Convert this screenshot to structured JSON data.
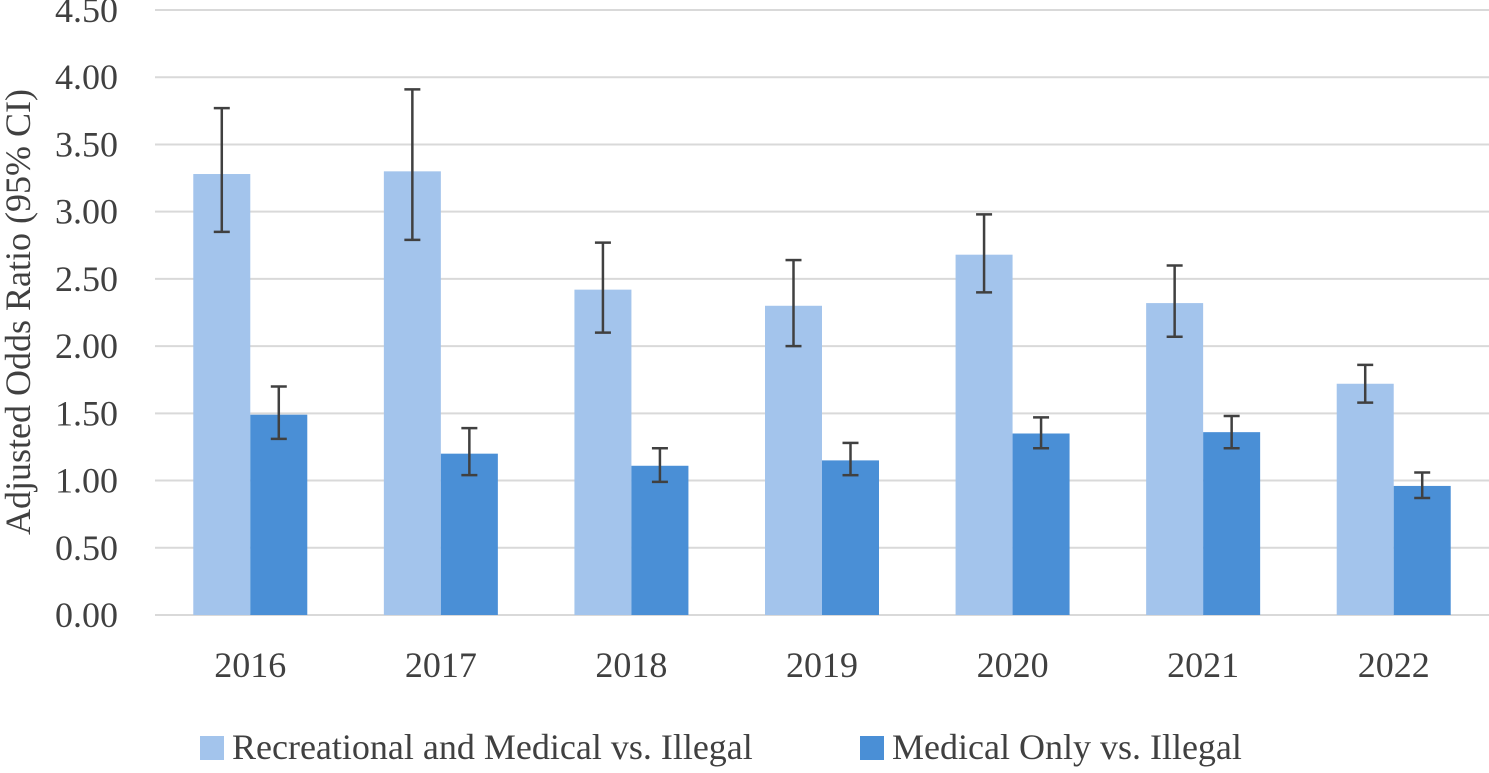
{
  "chart_data": {
    "type": "bar",
    "title": "",
    "xlabel": "",
    "ylabel": "Adjusted Odds Ratio (95% CI)",
    "ylim": [
      0,
      4.5
    ],
    "ytick_step": 0.5,
    "ytick_labels": [
      "0.00",
      "0.50",
      "1.00",
      "1.50",
      "2.00",
      "2.50",
      "3.00",
      "3.50",
      "4.00",
      "4.50"
    ],
    "grid": true,
    "legend_position": "bottom",
    "categories": [
      "2016",
      "2017",
      "2018",
      "2019",
      "2020",
      "2021",
      "2022"
    ],
    "series": [
      {
        "name": "Recreational and Medical vs. Illegal",
        "color": "#a3c4ec",
        "values": [
          3.28,
          3.3,
          2.42,
          2.3,
          2.68,
          2.32,
          1.72
        ],
        "ci_lower": [
          2.85,
          2.79,
          2.1,
          2.0,
          2.4,
          2.07,
          1.58
        ],
        "ci_upper": [
          3.77,
          3.91,
          2.77,
          2.64,
          2.98,
          2.6,
          1.86
        ]
      },
      {
        "name": "Medical Only vs. Illegal",
        "color": "#4a8fd6",
        "values": [
          1.49,
          1.2,
          1.11,
          1.15,
          1.35,
          1.36,
          0.96
        ],
        "ci_lower": [
          1.31,
          1.04,
          0.99,
          1.04,
          1.24,
          1.24,
          0.87
        ],
        "ci_upper": [
          1.7,
          1.39,
          1.24,
          1.28,
          1.47,
          1.48,
          1.06
        ]
      }
    ],
    "gridline_color": "#d9d9d9",
    "errorbar_color": "#404040"
  }
}
